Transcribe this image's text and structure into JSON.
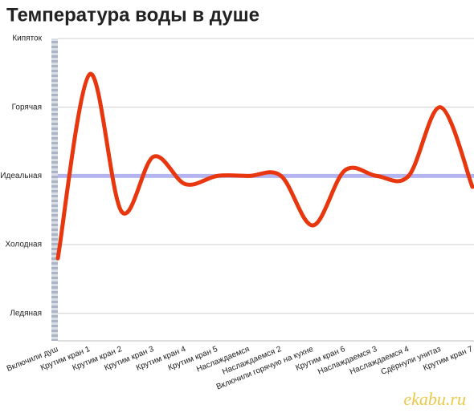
{
  "chart_data": {
    "type": "line",
    "title": "Температура воды в душе",
    "categories": [
      "Включили душ",
      "Крутим кран 1",
      "Крутим кран 2",
      "Крутим кран 3",
      "Крутим кран 4",
      "Крутим кран 5",
      "Наслаждаемся",
      "Наслаждаемся 2",
      "Включили горячую на кухне",
      "Крутим кран 6",
      "Наслаждаемся 3",
      "Наслаждаемся 4",
      "Сдёрнули унитаз",
      "Крутим кран 7"
    ],
    "values": [
      20,
      87,
      37,
      57,
      47,
      50,
      50,
      50,
      32,
      52,
      50,
      50,
      75,
      46
    ],
    "color": "#e8370e",
    "ideal_line": {
      "value": 50,
      "color": "#b4b4f0"
    },
    "ylim": [
      -10,
      100
    ],
    "yticks": [
      {
        "value": 0,
        "label": "Ледяная"
      },
      {
        "value": 25,
        "label": "Холодная"
      },
      {
        "value": 50,
        "label": "Идеальная"
      },
      {
        "value": 75,
        "label": "Горячая"
      },
      {
        "value": 100,
        "label": "Кипяток"
      }
    ],
    "grid": true,
    "watermark": "ekabu.ru"
  }
}
